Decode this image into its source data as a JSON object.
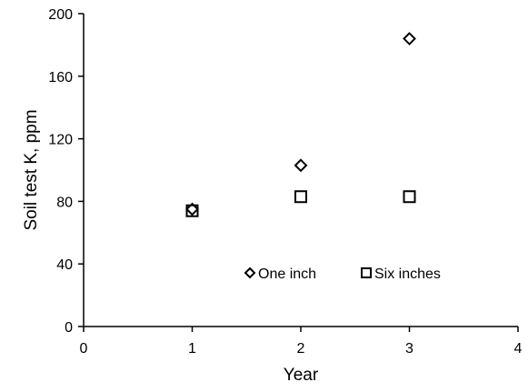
{
  "chart_data": {
    "type": "scatter",
    "title": "",
    "xlabel": "Year",
    "ylabel": "Soil test K, ppm",
    "xlim": [
      0,
      4
    ],
    "ylim": [
      0,
      200
    ],
    "xticks": [
      "0",
      "1",
      "2",
      "3",
      "4"
    ],
    "yticks": [
      "0",
      "40",
      "80",
      "120",
      "160",
      "200"
    ],
    "grid": false,
    "legend_position": "inside-bottom-right",
    "series": [
      {
        "name": "One inch",
        "marker": "diamond",
        "color": "#000000",
        "points": [
          {
            "x": 1,
            "y": 75
          },
          {
            "x": 2,
            "y": 103
          },
          {
            "x": 3,
            "y": 184
          }
        ]
      },
      {
        "name": "Six inches",
        "marker": "square",
        "color": "#000000",
        "points": [
          {
            "x": 1,
            "y": 74
          },
          {
            "x": 2,
            "y": 83
          },
          {
            "x": 3,
            "y": 83
          }
        ]
      }
    ]
  }
}
